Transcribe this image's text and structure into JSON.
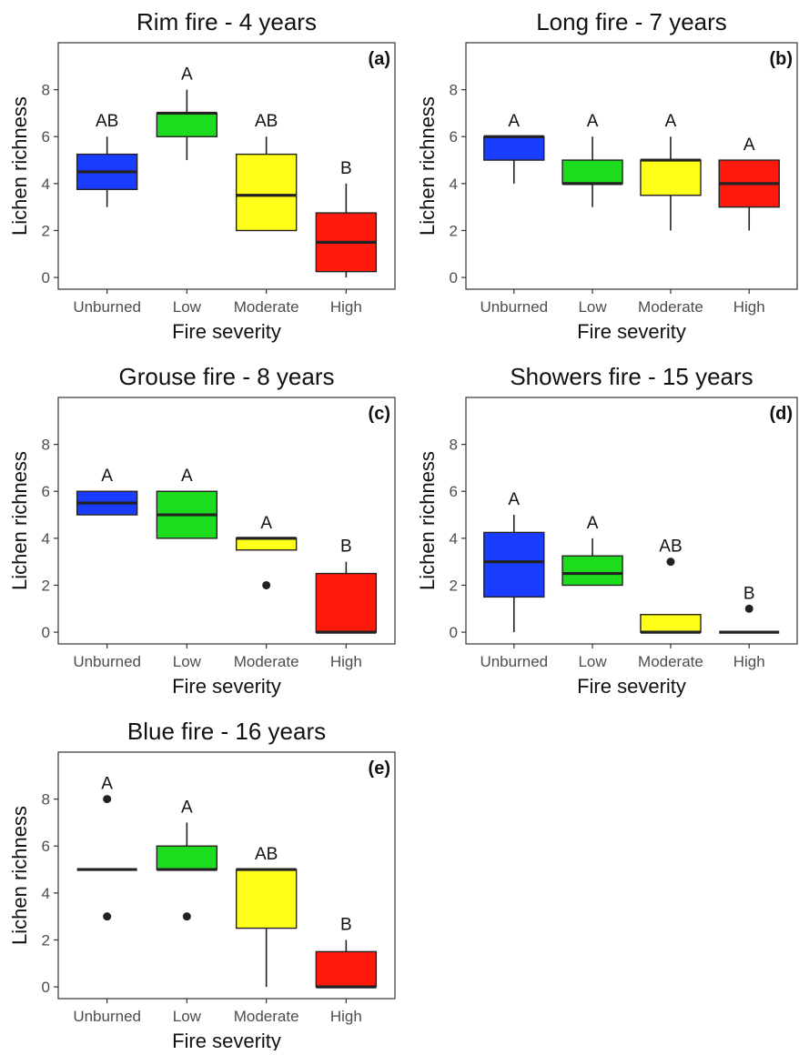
{
  "chart_data": [
    {
      "type": "box",
      "title": "Rim fire - 4 years",
      "panel_label": "(a)",
      "xlabel": "Fire severity",
      "ylabel": "Lichen richness",
      "ylim": [
        -0.5,
        10
      ],
      "yticks": [
        "0",
        "2",
        "4",
        "6",
        "8"
      ],
      "grid": false,
      "categories": [
        "Unburned",
        "Low",
        "Moderate",
        "High"
      ],
      "boxes": [
        {
          "category": "Unburned",
          "q1": 3.75,
          "median": 4.5,
          "q3": 5.25,
          "whisker_low": 3,
          "whisker_high": 6,
          "outliers": [],
          "letter": "AB"
        },
        {
          "category": "Low",
          "q1": 6,
          "median": 7,
          "q3": 7,
          "whisker_low": 5,
          "whisker_high": 8,
          "outliers": [],
          "letter": "A"
        },
        {
          "category": "Moderate",
          "q1": 2,
          "median": 3.5,
          "q3": 5.25,
          "whisker_low": 2,
          "whisker_high": 6,
          "outliers": [],
          "letter": "AB"
        },
        {
          "category": "High",
          "q1": 0.25,
          "median": 1.5,
          "q3": 2.75,
          "whisker_low": 0,
          "whisker_high": 4,
          "outliers": [],
          "letter": "B"
        }
      ]
    },
    {
      "type": "box",
      "title": "Long fire - 7 years",
      "panel_label": "(b)",
      "xlabel": "Fire severity",
      "ylabel": "Lichen richness",
      "ylim": [
        -0.5,
        10
      ],
      "yticks": [
        "0",
        "2",
        "4",
        "6",
        "8"
      ],
      "grid": false,
      "categories": [
        "Unburned",
        "Low",
        "Moderate",
        "High"
      ],
      "boxes": [
        {
          "category": "Unburned",
          "q1": 5,
          "median": 6,
          "q3": 6,
          "whisker_low": 4,
          "whisker_high": 6,
          "outliers": [],
          "letter": "A"
        },
        {
          "category": "Low",
          "q1": 4,
          "median": 4,
          "q3": 5,
          "whisker_low": 3,
          "whisker_high": 6,
          "outliers": [],
          "letter": "A"
        },
        {
          "category": "Moderate",
          "q1": 3.5,
          "median": 5,
          "q3": 5,
          "whisker_low": 2,
          "whisker_high": 6,
          "outliers": [],
          "letter": "A"
        },
        {
          "category": "High",
          "q1": 3,
          "median": 4,
          "q3": 5,
          "whisker_low": 2,
          "whisker_high": 5,
          "outliers": [],
          "letter": "A"
        }
      ]
    },
    {
      "type": "box",
      "title": "Grouse fire - 8 years",
      "panel_label": "(c)",
      "xlabel": "Fire severity",
      "ylabel": "Lichen richness",
      "ylim": [
        -0.5,
        10
      ],
      "yticks": [
        "0",
        "2",
        "4",
        "6",
        "8"
      ],
      "grid": false,
      "categories": [
        "Unburned",
        "Low",
        "Moderate",
        "High"
      ],
      "boxes": [
        {
          "category": "Unburned",
          "q1": 5,
          "median": 5.5,
          "q3": 6,
          "whisker_low": 5,
          "whisker_high": 6,
          "outliers": [],
          "letter": "A"
        },
        {
          "category": "Low",
          "q1": 4,
          "median": 5,
          "q3": 6,
          "whisker_low": 4,
          "whisker_high": 6,
          "outliers": [],
          "letter": "A"
        },
        {
          "category": "Moderate",
          "q1": 3.5,
          "median": 4,
          "q3": 4,
          "whisker_low": 3.5,
          "whisker_high": 4,
          "outliers": [
            2
          ],
          "letter": "A"
        },
        {
          "category": "High",
          "q1": 0,
          "median": 0,
          "q3": 2.5,
          "whisker_low": 0,
          "whisker_high": 3,
          "outliers": [],
          "letter": "B"
        }
      ]
    },
    {
      "type": "box",
      "title": "Showers fire - 15 years",
      "panel_label": "(d)",
      "xlabel": "Fire severity",
      "ylabel": "Lichen richness",
      "ylim": [
        -0.5,
        10
      ],
      "yticks": [
        "0",
        "2",
        "4",
        "6",
        "8"
      ],
      "grid": false,
      "categories": [
        "Unburned",
        "Low",
        "Moderate",
        "High"
      ],
      "boxes": [
        {
          "category": "Unburned",
          "q1": 1.5,
          "median": 3,
          "q3": 4.25,
          "whisker_low": 0,
          "whisker_high": 5,
          "outliers": [],
          "letter": "A"
        },
        {
          "category": "Low",
          "q1": 2,
          "median": 2.5,
          "q3": 3.25,
          "whisker_low": 2,
          "whisker_high": 4,
          "outliers": [],
          "letter": "A"
        },
        {
          "category": "Moderate",
          "q1": 0,
          "median": 0,
          "q3": 0.75,
          "whisker_low": 0,
          "whisker_high": 0.75,
          "outliers": [
            3
          ],
          "letter": "AB"
        },
        {
          "category": "High",
          "q1": 0,
          "median": 0,
          "q3": 0,
          "whisker_low": 0,
          "whisker_high": 0,
          "outliers": [
            1
          ],
          "letter": "B"
        }
      ]
    },
    {
      "type": "box",
      "title": "Blue fire - 16 years",
      "panel_label": "(e)",
      "xlabel": "Fire severity",
      "ylabel": "Lichen richness",
      "ylim": [
        -0.5,
        10
      ],
      "yticks": [
        "0",
        "2",
        "4",
        "6",
        "8"
      ],
      "grid": false,
      "categories": [
        "Unburned",
        "Low",
        "Moderate",
        "High"
      ],
      "boxes": [
        {
          "category": "Unburned",
          "q1": 5,
          "median": 5,
          "q3": 5,
          "whisker_low": 5,
          "whisker_high": 5,
          "outliers": [
            8,
            3
          ],
          "letter": "A"
        },
        {
          "category": "Low",
          "q1": 5,
          "median": 5,
          "q3": 6,
          "whisker_low": 5,
          "whisker_high": 7,
          "outliers": [
            3
          ],
          "letter": "A"
        },
        {
          "category": "Moderate",
          "q1": 2.5,
          "median": 5,
          "q3": 5,
          "whisker_low": 0,
          "whisker_high": 5,
          "outliers": [],
          "letter": "AB"
        },
        {
          "category": "High",
          "q1": 0,
          "median": 0,
          "q3": 1.5,
          "whisker_low": 0,
          "whisker_high": 2,
          "outliers": [],
          "letter": "B"
        }
      ]
    }
  ],
  "colors": {
    "Unburned": "#1a3cff",
    "Low": "#1ddb1d",
    "Moderate": "#ffff1a",
    "High": "#ff1a0d",
    "line": "#222222",
    "axis_text": "#4d4d4d",
    "panel_border": "#333333"
  }
}
